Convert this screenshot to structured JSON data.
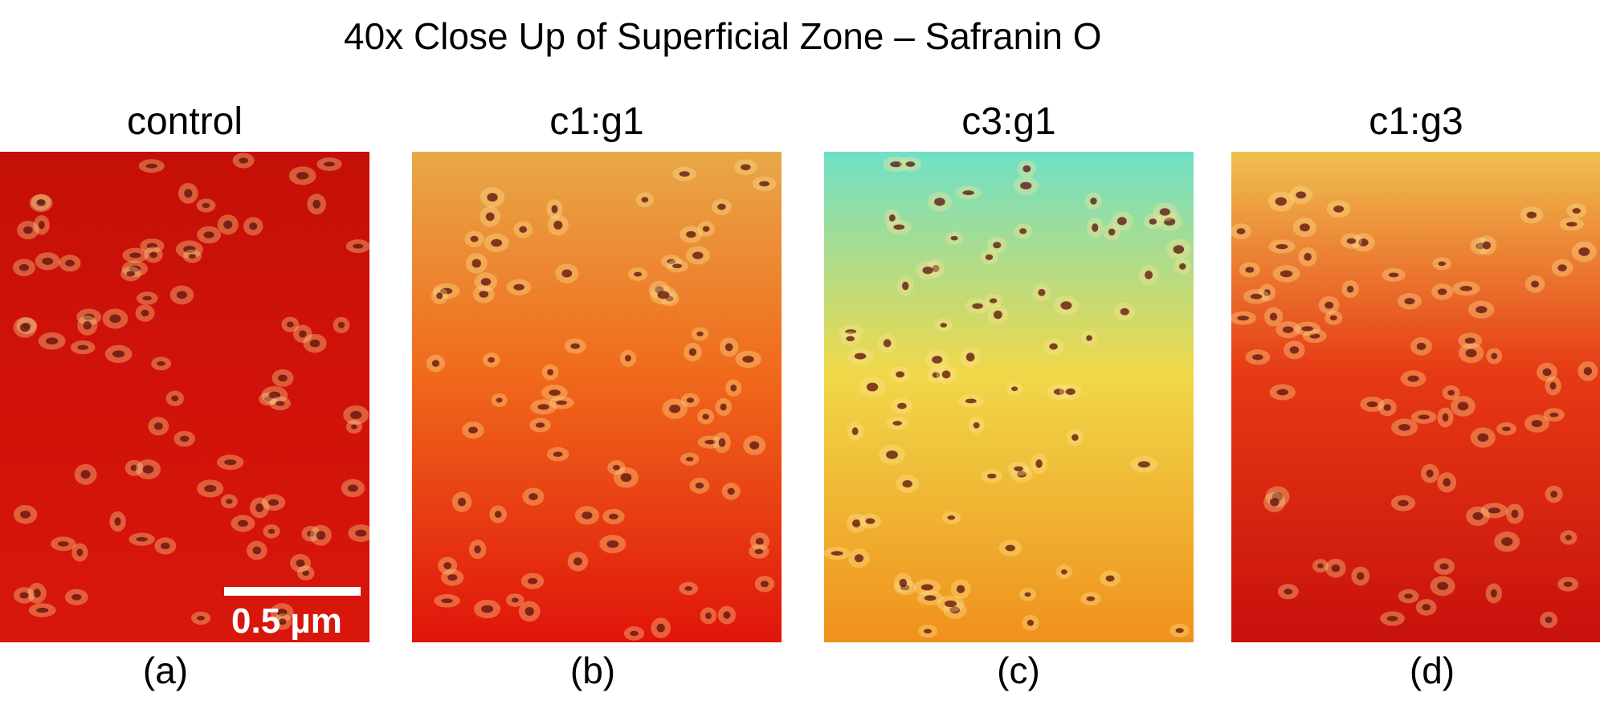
{
  "title": "40x Close Up of Superficial Zone – Safranin O",
  "panels": [
    {
      "label": "control",
      "caption": "(a)",
      "stain_top": "#c41008",
      "stain_mid": "#d0120a",
      "stain_bottom": "#d8160c"
    },
    {
      "label": "c1:g1",
      "caption": "(b)",
      "stain_top": "#e8a848",
      "stain_mid": "#f06a1c",
      "stain_bottom": "#e0140a"
    },
    {
      "label": "c3:g1",
      "caption": "(c)",
      "stain_top": "#6fe0c8",
      "stain_mid": "#f0d84a",
      "stain_bottom": "#f0901c"
    },
    {
      "label": "c1:g3",
      "caption": "(d)",
      "stain_top": "#f0c050",
      "stain_mid": "#e63a14",
      "stain_bottom": "#c8100c"
    }
  ],
  "scale_bar": {
    "label": "0.5 µm"
  },
  "cell_color": "#5a0e0a"
}
